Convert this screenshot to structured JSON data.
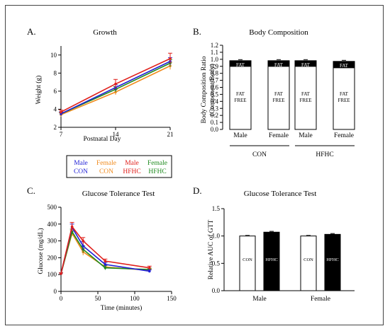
{
  "panels": {
    "a": {
      "letter": "A.",
      "title": "Growth"
    },
    "b": {
      "letter": "B.",
      "title": "Body Composition"
    },
    "c": {
      "letter": "C.",
      "title": "Glucose Tolerance Test"
    },
    "d": {
      "letter": "D.",
      "title": "Glucose Tolerance Test"
    }
  },
  "legend": {
    "entries": [
      {
        "line1": "Male",
        "line2": "CON",
        "color": "#1f1fd6"
      },
      {
        "line1": "Female",
        "line2": "CON",
        "color": "#f08a1c"
      },
      {
        "line1": "Male",
        "line2": "HFHC",
        "color": "#e0201c"
      },
      {
        "line1": "Female",
        "line2": "HFHC",
        "color": "#1e8a1e"
      }
    ]
  },
  "chart_data": [
    {
      "id": "growth",
      "type": "line",
      "title": "Growth",
      "xlabel": "Postnatal Day",
      "ylabel": "Weight (g)",
      "x": [
        7,
        14,
        21
      ],
      "xticks": [
        "7",
        "14",
        "21"
      ],
      "yticks": [
        "2",
        "4",
        "6",
        "8",
        "10"
      ],
      "xlim": [
        7,
        21
      ],
      "ylim": [
        2,
        11
      ],
      "series": [
        {
          "name": "Female CON",
          "color": "#f08a1c",
          "values": [
            3.4,
            5.9,
            8.8
          ],
          "err": [
            0.2,
            0.3,
            0.4
          ]
        },
        {
          "name": "Female HFHC",
          "color": "#1e8a1e",
          "values": [
            3.5,
            6.2,
            9.1
          ],
          "err": [
            0.2,
            0.3,
            0.4
          ]
        },
        {
          "name": "Male CON",
          "color": "#1f1fd6",
          "values": [
            3.5,
            6.4,
            9.3
          ],
          "err": [
            0.2,
            0.3,
            0.4
          ]
        },
        {
          "name": "Male HFHC",
          "color": "#e0201c",
          "values": [
            3.7,
            6.8,
            9.6
          ],
          "err": [
            0.2,
            0.5,
            0.6
          ]
        }
      ]
    },
    {
      "id": "bodycomp",
      "type": "bar",
      "title": "Body Composition",
      "ylabel_line1": "Body Composition Ratio",
      "ylabel_line2": "(Component/Body)",
      "yticks": [
        "0.0",
        "0.1",
        "0.2",
        "0.3",
        "0.4",
        "0.5",
        "0.6",
        "0.7",
        "0.8",
        "0.9",
        "1.0",
        "1.1",
        "1.2"
      ],
      "ylim": [
        0,
        1.2
      ],
      "categories": [
        "Male",
        "Female",
        "Male",
        "Female"
      ],
      "groups": [
        {
          "label": "CON"
        },
        {
          "label": "HFHC"
        }
      ],
      "fat_free": [
        0.9,
        0.9,
        0.9,
        0.88
      ],
      "total": [
        0.98,
        0.98,
        0.98,
        0.97
      ],
      "fat_label": "FAT",
      "fat_free_label_line1": "FAT",
      "fat_free_label_line2": "FREE"
    },
    {
      "id": "gtt",
      "type": "line",
      "title": "Glucose Tolerance Test",
      "xlabel": "Time (minutes)",
      "ylabel": "Glucose (mg/dL)",
      "x": [
        0,
        15,
        30,
        60,
        120
      ],
      "xticks": [
        "0",
        "50",
        "100",
        "150"
      ],
      "yticks": [
        "0",
        "100",
        "200",
        "300",
        "400",
        "500"
      ],
      "xlim": [
        0,
        150
      ],
      "ylim": [
        0,
        500
      ],
      "series": [
        {
          "name": "Female CON",
          "color": "#f08a1c",
          "values": [
            105,
            345,
            235,
            145,
            125
          ],
          "err": [
            5,
            15,
            20,
            12,
            8
          ]
        },
        {
          "name": "Female HFHC",
          "color": "#1e8a1e",
          "values": [
            105,
            355,
            250,
            140,
            130
          ],
          "err": [
            5,
            15,
            20,
            12,
            8
          ]
        },
        {
          "name": "Male CON",
          "color": "#1f1fd6",
          "values": [
            105,
            380,
            270,
            160,
            120
          ],
          "err": [
            5,
            20,
            25,
            12,
            8
          ]
        },
        {
          "name": "Male HFHC",
          "color": "#e0201c",
          "values": [
            105,
            385,
            300,
            180,
            140
          ],
          "err": [
            5,
            25,
            20,
            12,
            10
          ]
        }
      ]
    },
    {
      "id": "auc",
      "type": "bar",
      "title": "Glucose Tolerance Test",
      "ylabel": "Relative AUC of GTT",
      "yticks": [
        "0.0",
        "0.5",
        "1.0",
        "1.5"
      ],
      "ylim": [
        0,
        1.5
      ],
      "categories": [
        "Male",
        "Female"
      ],
      "series": [
        {
          "name": "CON",
          "fill": "#ffffff",
          "label_color": "#000000",
          "values": [
            1.0,
            1.0
          ],
          "err": [
            0.01,
            0.01
          ]
        },
        {
          "name": "HFHC",
          "fill": "#000000",
          "label_color": "#ffffff",
          "values": [
            1.07,
            1.03
          ],
          "err": [
            0.015,
            0.015
          ]
        }
      ]
    }
  ]
}
